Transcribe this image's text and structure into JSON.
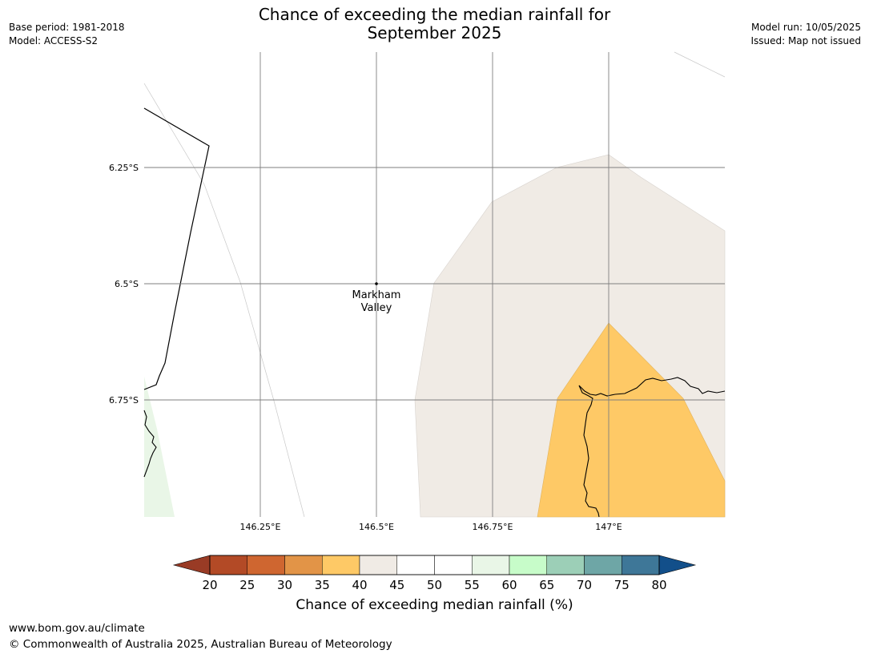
{
  "header": {
    "title_line1": "Chance of exceeding the median rainfall for",
    "title_line2": "September 2025",
    "base_period": "Base period: 1981-2018",
    "model": "Model: ACCESS-S2",
    "model_run": "Model run: 10/05/2025",
    "issued": "Issued: Map not issued"
  },
  "map": {
    "lat_labels": [
      "6.25°S",
      "6.5°S",
      "6.75°S"
    ],
    "lon_labels": [
      "146.25°E",
      "146.5°E",
      "146.75°E",
      "147°E"
    ],
    "place": {
      "line1": "Markham",
      "line2": "Valley"
    }
  },
  "colorbar": {
    "ticks": [
      "20",
      "25",
      "30",
      "35",
      "40",
      "45",
      "50",
      "55",
      "60",
      "65",
      "70",
      "75",
      "80"
    ],
    "colors": [
      "#b34a26",
      "#cf6630",
      "#e29447",
      "#fec966",
      "#f0ebe5",
      "#ffffff",
      "#ffffff",
      "#e9f6e7",
      "#c7fcc9",
      "#9ccfb7",
      "#6ea6a6",
      "#3e7798"
    ],
    "under_color": "#993b25",
    "over_color": "#124f8a",
    "label": "Chance of exceeding median rainfall (%)"
  },
  "footer": {
    "url": "www.bom.gov.au/climate",
    "copyright": "© Commonwealth of Australia 2025, Australian Bureau of Meteorology"
  }
}
